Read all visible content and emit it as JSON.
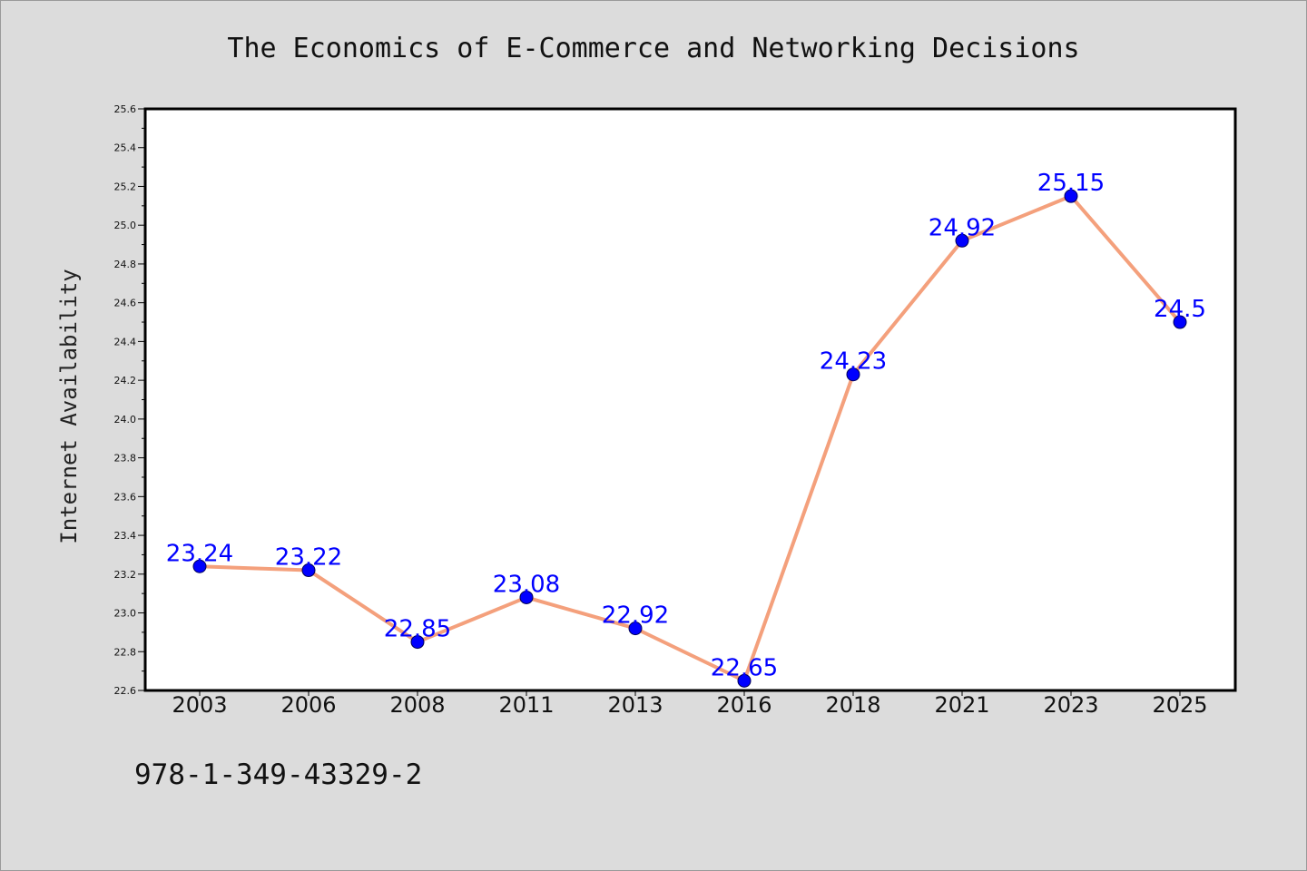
{
  "chart_data": {
    "type": "line",
    "title": "The Economics of E-Commerce and Networking Decisions",
    "xlabel": "",
    "ylabel": "Internet Availability",
    "categories": [
      "2003",
      "2006",
      "2008",
      "2011",
      "2013",
      "2016",
      "2018",
      "2021",
      "2023",
      "2025"
    ],
    "series": [
      {
        "values": [
          23.24,
          23.22,
          22.85,
          23.08,
          22.92,
          22.65,
          24.23,
          24.92,
          25.15,
          24.5
        ],
        "data_labels": [
          "23.24",
          "23.22",
          "22.85",
          "23.08",
          "22.92",
          "22.65",
          "24.23",
          "24.92",
          "25.15",
          "24.5"
        ],
        "line_color": "#f4a07c",
        "marker_color": "#0000ff"
      }
    ],
    "ylim": [
      22.6,
      25.6
    ],
    "yticks": [
      "22.6",
      "22.8",
      "23.0",
      "23.2",
      "23.4",
      "23.6",
      "23.8",
      "24.0",
      "24.2",
      "24.4",
      "24.6",
      "24.8",
      "25.0",
      "25.2",
      "25.4",
      "25.6"
    ],
    "grid": false,
    "legend": "none"
  },
  "footer": {
    "isbn": "978-1-349-43329-2"
  },
  "colors": {
    "background": "#dcdcdc",
    "plot_area": "#ffffff",
    "axis": "#000000",
    "label": "#0000ff"
  }
}
